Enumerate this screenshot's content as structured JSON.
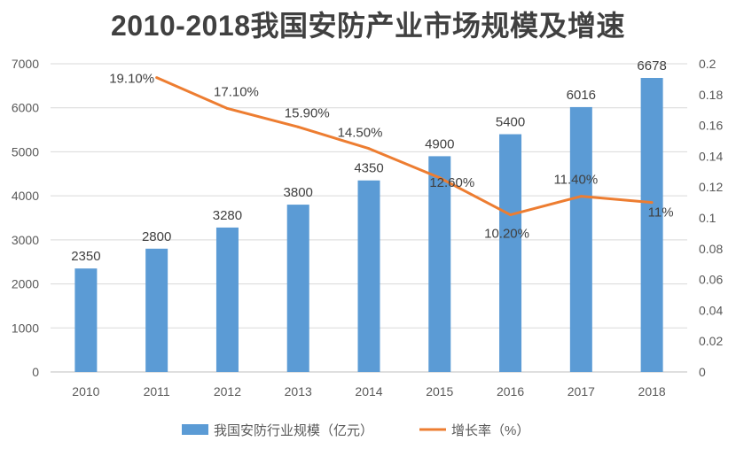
{
  "chart_data": {
    "type": "bar+line",
    "title": "2010-2018我国安防产业市场规模及增速",
    "categories": [
      "2010",
      "2011",
      "2012",
      "2013",
      "2014",
      "2015",
      "2016",
      "2017",
      "2018"
    ],
    "series": [
      {
        "name": "我国安防行业规模（亿元）",
        "type": "bar",
        "axis": "left",
        "color": "#5B9BD5",
        "values": [
          2350,
          2800,
          3280,
          3800,
          4350,
          4900,
          5400,
          6016,
          6678
        ],
        "labels": [
          "2350",
          "2800",
          "3280",
          "3800",
          "4350",
          "4900",
          "5400",
          "6016",
          "6678"
        ]
      },
      {
        "name": "增长率（%）",
        "type": "line",
        "axis": "right",
        "color": "#ED7D31",
        "x": [
          "2011",
          "2012",
          "2013",
          "2014",
          "2015",
          "2016",
          "2017",
          "2018"
        ],
        "values": [
          0.191,
          0.171,
          0.159,
          0.145,
          0.126,
          0.102,
          0.114,
          0.11
        ],
        "labels": [
          "19.10%",
          "17.10%",
          "15.90%",
          "14.50%",
          "12.60%",
          "10.20%",
          "11.40%",
          "11%"
        ]
      }
    ],
    "left_axis": {
      "ylim": [
        0,
        7000
      ],
      "ticks": [
        "0",
        "1000",
        "2000",
        "3000",
        "4000",
        "5000",
        "6000",
        "7000"
      ]
    },
    "right_axis": {
      "ylim": [
        0,
        0.2
      ],
      "ticks": [
        "0",
        "0.02",
        "0.04",
        "0.06",
        "0.08",
        "0.1",
        "0.12",
        "0.14",
        "0.16",
        "0.18",
        "0.2"
      ]
    },
    "grid": true,
    "legend_position": "bottom"
  }
}
